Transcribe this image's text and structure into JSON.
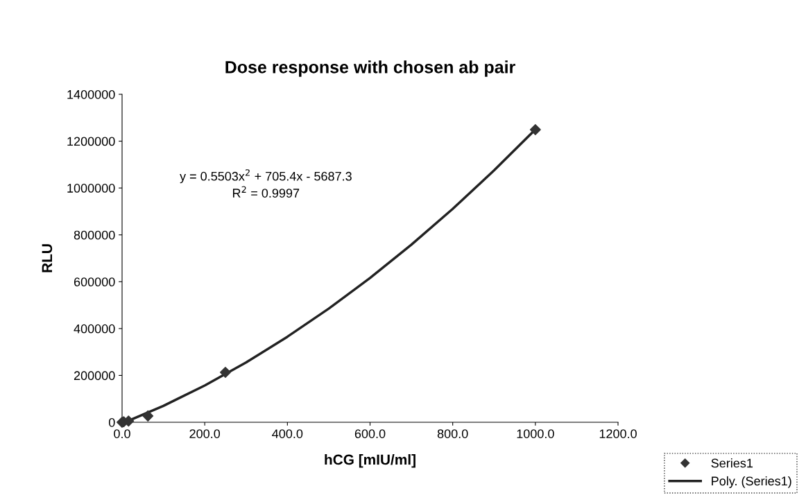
{
  "chart_data": {
    "type": "scatter",
    "title": "Dose response with chosen ab pair",
    "xlabel": "hCG [mIU/ml]",
    "ylabel": "RLU",
    "series": [
      {
        "name": "Series1",
        "color": "#333333",
        "marker": "diamond",
        "x": [
          0,
          3.9,
          15.6,
          62.5,
          250,
          1000
        ],
        "values": [
          0,
          2000,
          5000,
          27000,
          213000,
          1249000
        ]
      },
      {
        "name": "Poly. (Series1)",
        "type": "line",
        "color": "#222222",
        "marker": "none",
        "line_style": "solid",
        "x": [
          20,
          100,
          200,
          300,
          400,
          500,
          600,
          700,
          800,
          900,
          1000
        ],
        "values": [
          10000,
          70000,
          157000,
          255000,
          365000,
          485000,
          616000,
          758000,
          911000,
          1075000,
          1250000
        ]
      }
    ],
    "annotations": [
      "y = 0.5503x$^{2}$ + 705.4x - 5687.3",
      "R$^{2}$ = 0.9997"
    ],
    "xlim": [
      0,
      1200
    ],
    "xticks": [
      {
        "value": 0,
        "label": "0.0"
      },
      {
        "value": 200,
        "label": "200.0"
      },
      {
        "value": 400,
        "label": "400.0"
      },
      {
        "value": 600,
        "label": "600.0"
      },
      {
        "value": 800,
        "label": "800.0"
      },
      {
        "value": 1000,
        "label": "1000.0"
      },
      {
        "value": 1200,
        "label": "1200.0"
      }
    ],
    "ylim": [
      0,
      1400000
    ],
    "yticks": [
      0,
      200000,
      400000,
      600000,
      800000,
      1000000,
      1200000,
      1400000
    ],
    "grid": false,
    "legend": "bottom right"
  }
}
